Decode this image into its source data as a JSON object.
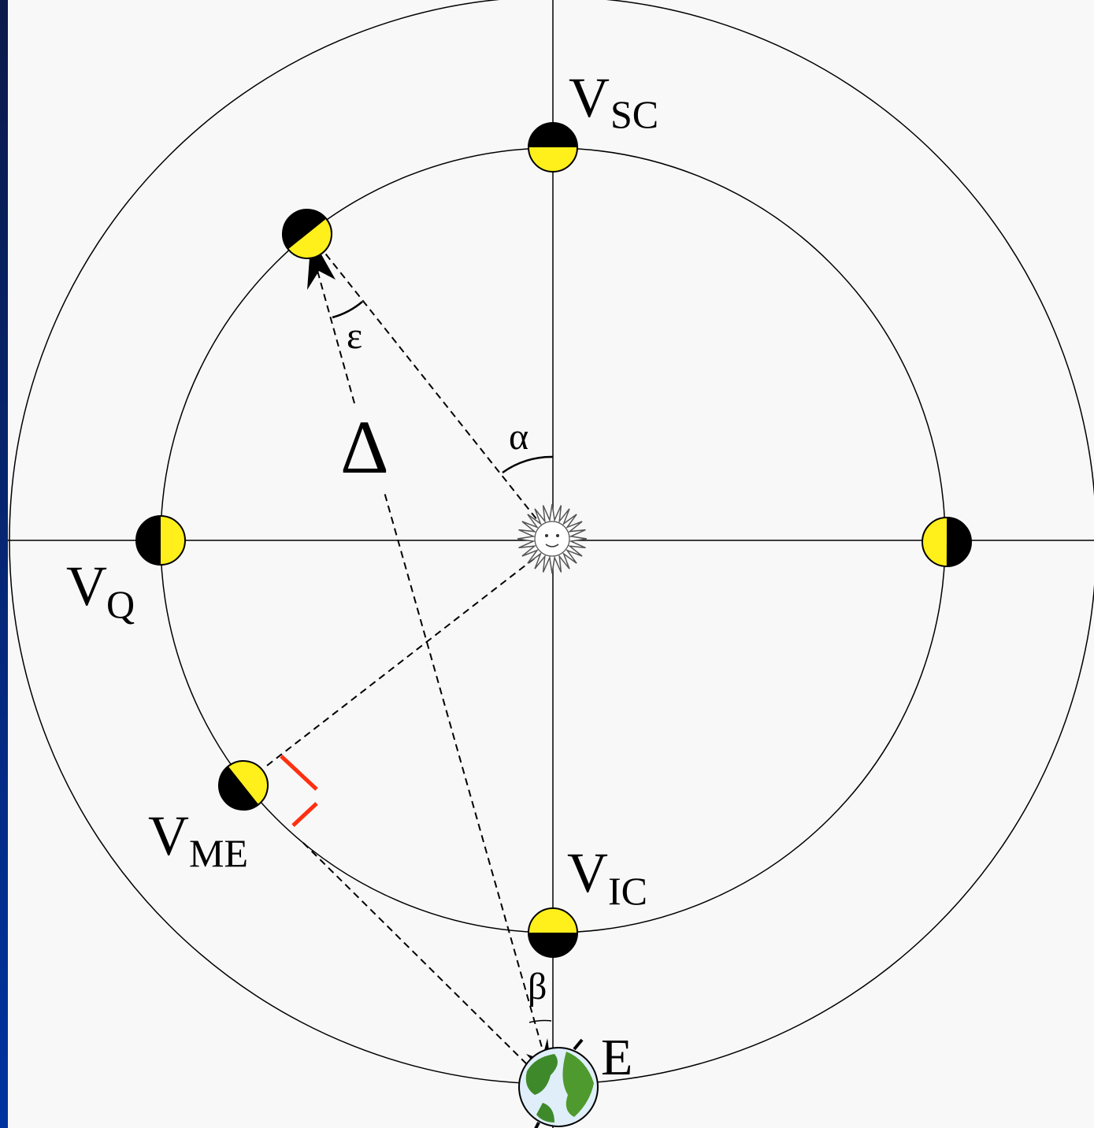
{
  "labels": {
    "superior_conjunction": {
      "main": "V",
      "sub": "SC"
    },
    "quadrature": {
      "main": "V",
      "sub": "Q"
    },
    "max_elongation": {
      "main": "V",
      "sub": "ME"
    },
    "inferior_conjunction": {
      "main": "V",
      "sub": "IC"
    },
    "earth": "E"
  },
  "greek": {
    "distance": "Δ",
    "elongation": "ε",
    "phase_angle": "α",
    "beta": "β"
  }
}
